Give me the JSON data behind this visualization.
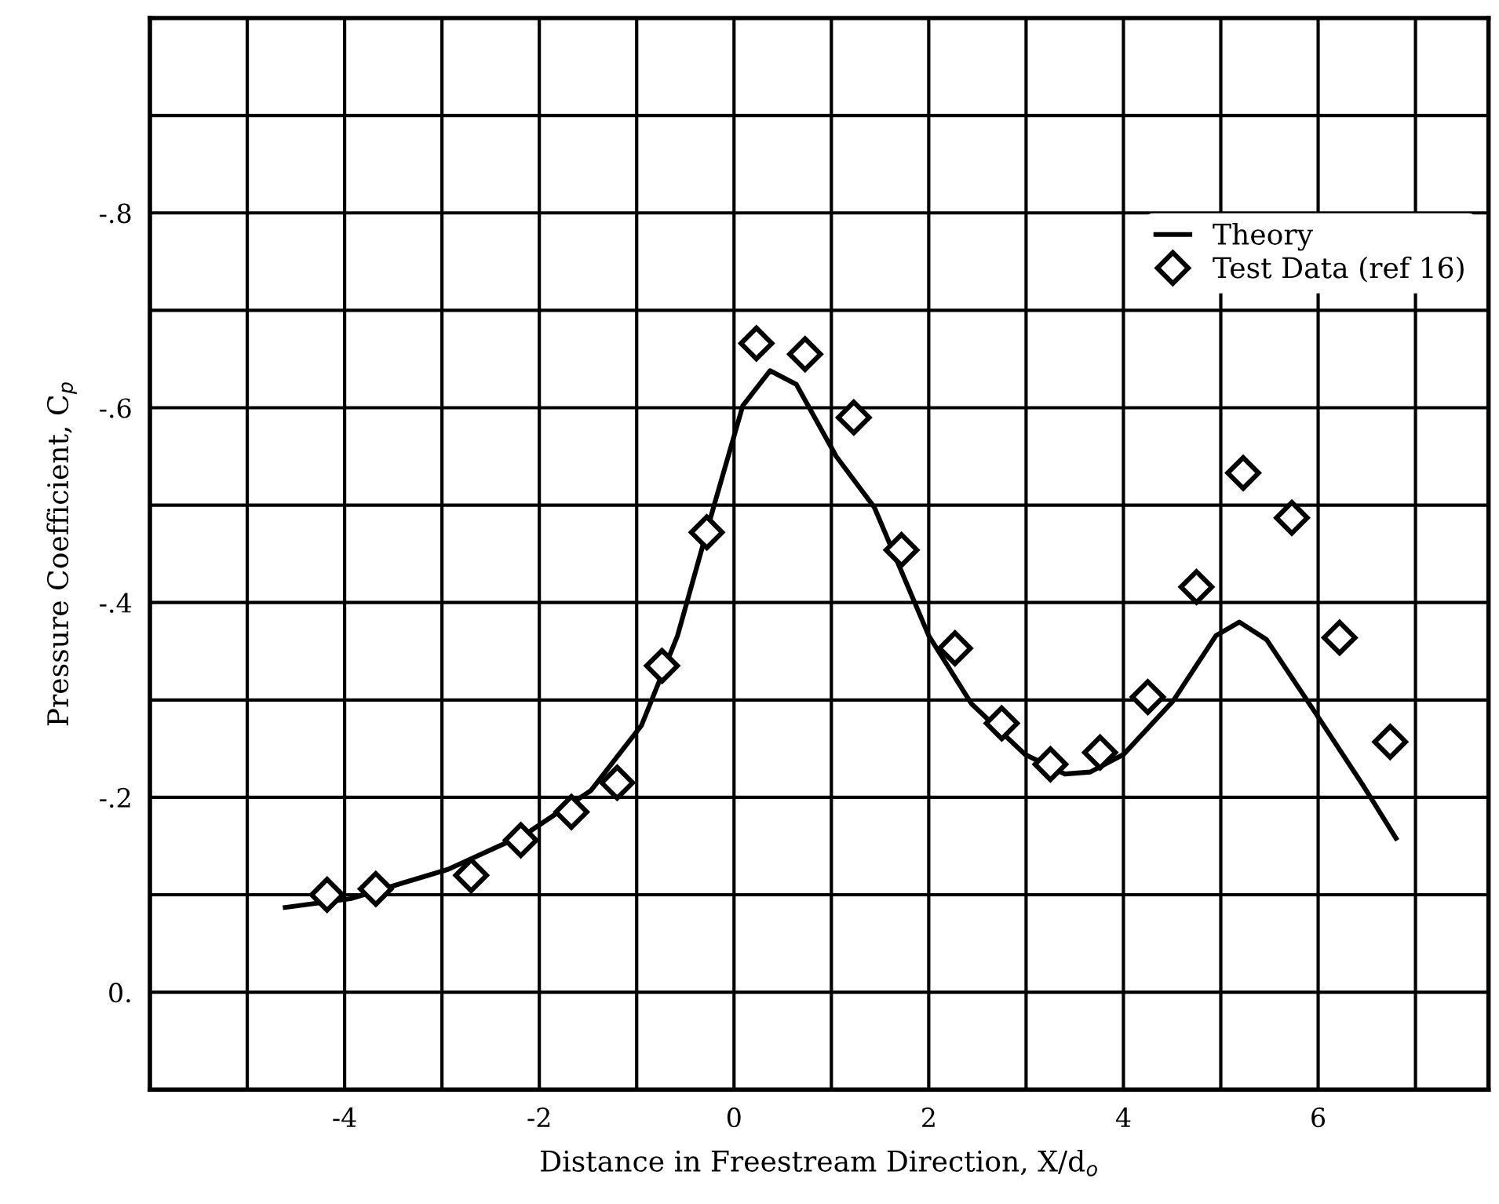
{
  "chart_data": {
    "type": "line",
    "xlabel": "Distance in Freestream Direction, X/d$_{o}$",
    "ylabel": "Pressure Coefficient, C$_{p}$",
    "xlim": [
      -6,
      7.75
    ],
    "ylim": [
      0.1,
      -1.0
    ],
    "xticks": [
      {
        "value": -5,
        "label": null
      },
      -4,
      {
        "value": -3,
        "label": null
      },
      -2,
      {
        "value": -1,
        "label": null
      },
      0,
      {
        "value": 1,
        "label": null
      },
      2,
      {
        "value": 3,
        "label": null
      },
      4,
      {
        "value": 5,
        "label": null
      },
      6,
      {
        "value": 7,
        "label": null
      }
    ],
    "yticks": [
      {
        "value": 0.1,
        "label": null
      },
      {
        "value": 0,
        "label": "0."
      },
      {
        "value": -0.1,
        "label": null
      },
      {
        "value": -0.2,
        "label": "-.2"
      },
      {
        "value": -0.3,
        "label": null
      },
      {
        "value": -0.4,
        "label": "-.4"
      },
      {
        "value": -0.5,
        "label": null
      },
      {
        "value": -0.6,
        "label": "-.6"
      },
      {
        "value": -0.7,
        "label": null
      },
      {
        "value": -0.8,
        "label": "-.8"
      },
      {
        "value": -0.9,
        "label": null
      },
      {
        "value": -1.0,
        "label": null
      }
    ],
    "grid": true,
    "legend": "top right",
    "series": [
      {
        "name": "Theory",
        "color": "#000000",
        "marker": "none",
        "line_style": "solid",
        "x": [
          -4.61,
          -3.94,
          -2.94,
          -2.13,
          -1.47,
          -0.95,
          -0.58,
          -0.21,
          0.09,
          0.37,
          0.64,
          1.05,
          1.44,
          2.0,
          2.44,
          2.99,
          3.4,
          3.66,
          4.0,
          4.51,
          4.95,
          5.19,
          5.47,
          5.99,
          6.47,
          6.8
        ],
        "values": [
          -0.087,
          -0.096,
          -0.126,
          -0.163,
          -0.207,
          -0.274,
          -0.366,
          -0.498,
          -0.602,
          -0.638,
          -0.624,
          -0.55,
          -0.498,
          -0.366,
          -0.296,
          -0.244,
          -0.224,
          -0.226,
          -0.244,
          -0.299,
          -0.366,
          -0.38,
          -0.362,
          -0.284,
          -0.211,
          -0.158
        ]
      },
      {
        "name": "Test Data (ref 16)",
        "type": "scatter",
        "color": "#000000",
        "marker": "diamond",
        "x": [
          -4.18,
          -3.68,
          -2.7,
          -2.19,
          -1.67,
          -1.2,
          -0.74,
          -0.28,
          0.23,
          0.73,
          1.23,
          1.72,
          2.27,
          2.75,
          3.25,
          3.76,
          4.25,
          4.75,
          5.23,
          5.73,
          6.22,
          6.74
        ],
        "values": [
          -0.1,
          -0.106,
          -0.12,
          -0.156,
          -0.185,
          -0.215,
          -0.335,
          -0.472,
          -0.666,
          -0.655,
          -0.59,
          -0.454,
          -0.353,
          -0.276,
          -0.234,
          -0.246,
          -0.303,
          -0.416,
          -0.533,
          -0.487,
          -0.364,
          -0.257
        ]
      }
    ]
  }
}
